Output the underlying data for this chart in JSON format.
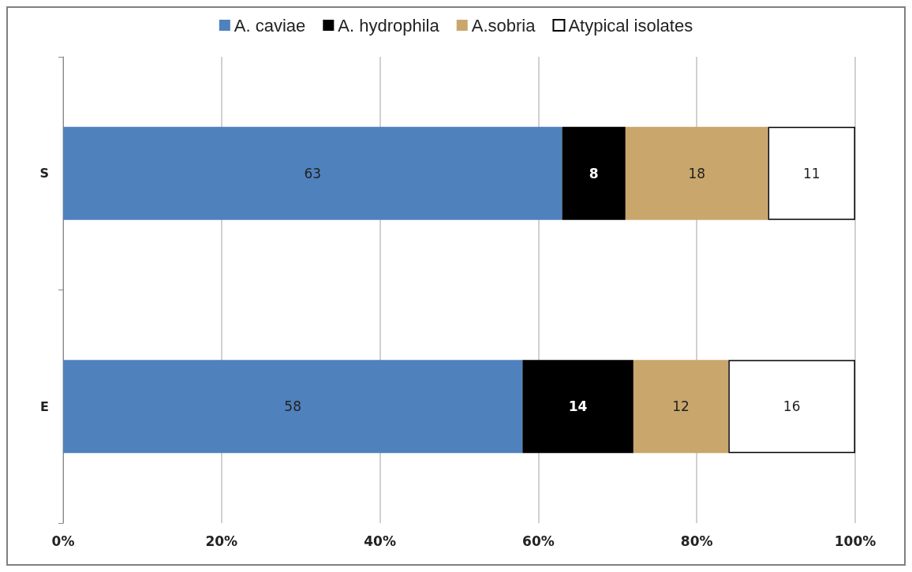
{
  "chart_data": {
    "type": "bar",
    "orientation": "horizontal",
    "stacked": true,
    "categories": [
      "S",
      "E"
    ],
    "series": [
      {
        "name": "A. caviae",
        "color": "#4f81bd",
        "values": [
          63,
          58
        ]
      },
      {
        "name": "A. hydrophila",
        "color": "#000000",
        "values": [
          8,
          14
        ]
      },
      {
        "name": "A.sobria",
        "color": "#c9a66b",
        "values": [
          18,
          12
        ]
      },
      {
        "name": "Atypical isolates",
        "color": "#ffffff",
        "values": [
          11,
          16
        ]
      }
    ],
    "xlim": [
      0,
      100
    ],
    "xticks": [
      {
        "value": 0,
        "label": "0%"
      },
      {
        "value": 20,
        "label": "20%"
      },
      {
        "value": 40,
        "label": "40%"
      },
      {
        "value": 60,
        "label": "60%"
      },
      {
        "value": 80,
        "label": "80%"
      },
      {
        "value": 100,
        "label": "100%"
      }
    ],
    "grid": "x",
    "legend": "top",
    "data_labels": true
  }
}
